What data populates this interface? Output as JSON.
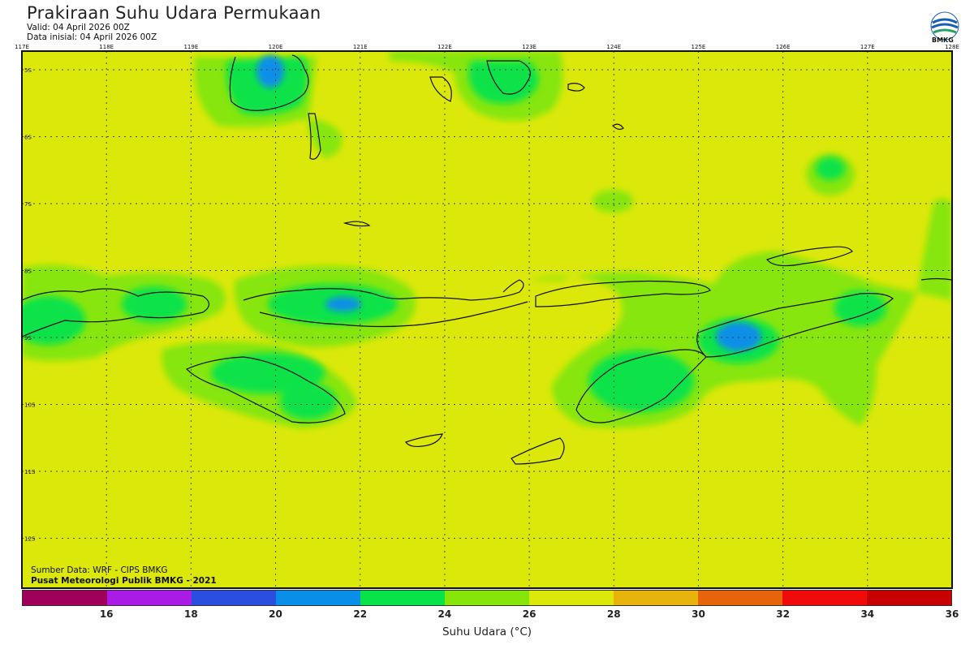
{
  "header": {
    "title": "Prakiraan Suhu Udara Permukaan",
    "valid": "Valid: 04 April 2026 00Z",
    "init": "Data inisial: 04 April 2026 00Z"
  },
  "logo": {
    "text": "BMKG",
    "icon": "bmkg-logo-icon"
  },
  "map": {
    "lon_labels": [
      "117E",
      "118E",
      "119E",
      "120E",
      "121E",
      "122E",
      "123E",
      "124E",
      "125E",
      "126E",
      "127E",
      "128E"
    ],
    "lat_labels": [
      "5S",
      "6S",
      "7S",
      "8S",
      "9S",
      "10S",
      "11S",
      "12S"
    ],
    "base_color": "#dbe80a"
  },
  "source": {
    "line1": "Sumber Data: WRF - CIPS BMKG",
    "line2": "Pusat Meteorologi Publik BMKG - 2021"
  },
  "legend": {
    "title": "Suhu Udara (°C)",
    "tick_labels": [
      "16",
      "18",
      "20",
      "22",
      "24",
      "26",
      "28",
      "30",
      "32",
      "34",
      "36"
    ],
    "colors": [
      "#a1005a",
      "#a81ce6",
      "#2a4fe0",
      "#0a8fe8",
      "#08e34a",
      "#86e60a",
      "#dbe80a",
      "#e6b40a",
      "#e6640a",
      "#f00a0a",
      "#c80000"
    ]
  }
}
